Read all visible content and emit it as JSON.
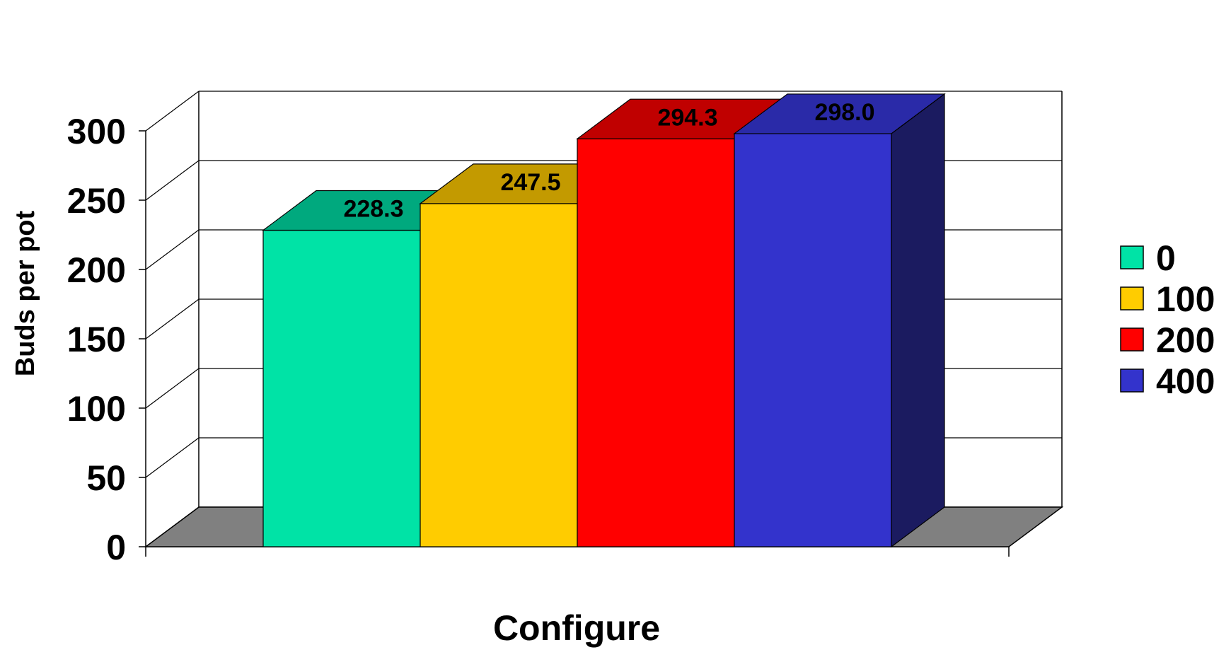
{
  "chart_data": {
    "type": "bar",
    "title": "",
    "xlabel": "Configure",
    "ylabel": "Buds per pot",
    "categories": [
      ""
    ],
    "ylim": [
      0,
      300
    ],
    "yticks": [
      "0",
      "50",
      "100",
      "150",
      "200",
      "250",
      "300"
    ],
    "grid": true,
    "legend_position": "right",
    "series": [
      {
        "name": "0",
        "values": [
          228.3
        ],
        "label": "228.3",
        "color": "#00e3a6",
        "top_color": "#00a97e",
        "side_color": "#00a97e"
      },
      {
        "name": "100",
        "values": [
          247.5
        ],
        "label": "247.5",
        "color": "#ffcc00",
        "top_color": "#c39a00",
        "side_color": "#c39a00"
      },
      {
        "name": "200",
        "values": [
          294.3
        ],
        "label": "294.3",
        "color": "#ff0000",
        "top_color": "#c00000",
        "side_color": "#c00000"
      },
      {
        "name": "400",
        "values": [
          298.0
        ],
        "label": "298.0",
        "color": "#3333cc",
        "top_color": "#2a2aa8",
        "side_color": "#1b1b60"
      }
    ],
    "floor_color": "#808080"
  }
}
